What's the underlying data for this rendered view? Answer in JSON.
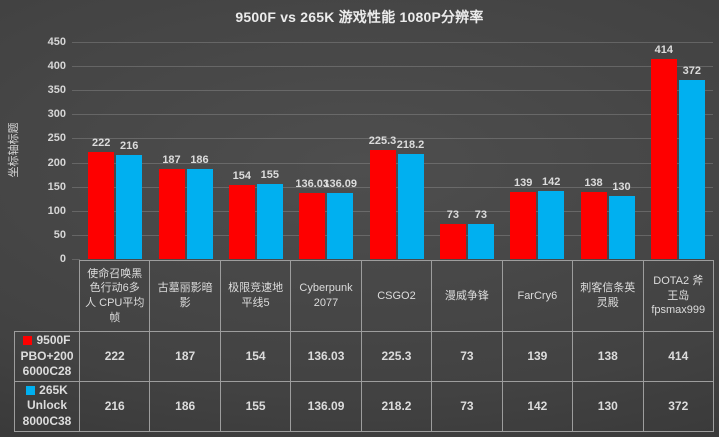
{
  "chart_data": {
    "type": "bar",
    "title": "9500F vs 265K 游戏性能 1080P分辨率",
    "y_axis_title": "坐标轴标题",
    "xlabel": "",
    "ylabel": "坐标轴标题",
    "ylim": [
      0,
      450
    ],
    "ytick_step": 50,
    "grid": true,
    "legend_position": "data-table-left",
    "data_table_shown": true,
    "categories": [
      "使命召唤黑色行动6多人 CPU平均帧",
      "古墓丽影暗影",
      "极限竞速地平线5",
      "Cyberpunk 2077",
      "CSGO2",
      "漫威争锋",
      "FarCry6",
      "刺客信条英灵殿",
      "DOTA2 斧王岛 fpsmax999"
    ],
    "series": [
      {
        "name": "9500F PBO+200 6000C28",
        "color": "#fe0000",
        "values": [
          222,
          187,
          154,
          136.03,
          225.3,
          73,
          139,
          138,
          414
        ]
      },
      {
        "name": "265K Unlock 8000C38",
        "color": "#00b0f0",
        "values": [
          216,
          186,
          155,
          136.09,
          218.2,
          73,
          142,
          130,
          372
        ]
      }
    ]
  },
  "colors": {
    "background_center": "#4e4e4e",
    "background_edge": "#303030",
    "text": "#dcdcdc",
    "gridline": "rgba(215,215,215,0.22)",
    "table_border": "#9d9d9d",
    "series1": "#fe0000",
    "series2": "#00b0f0"
  }
}
